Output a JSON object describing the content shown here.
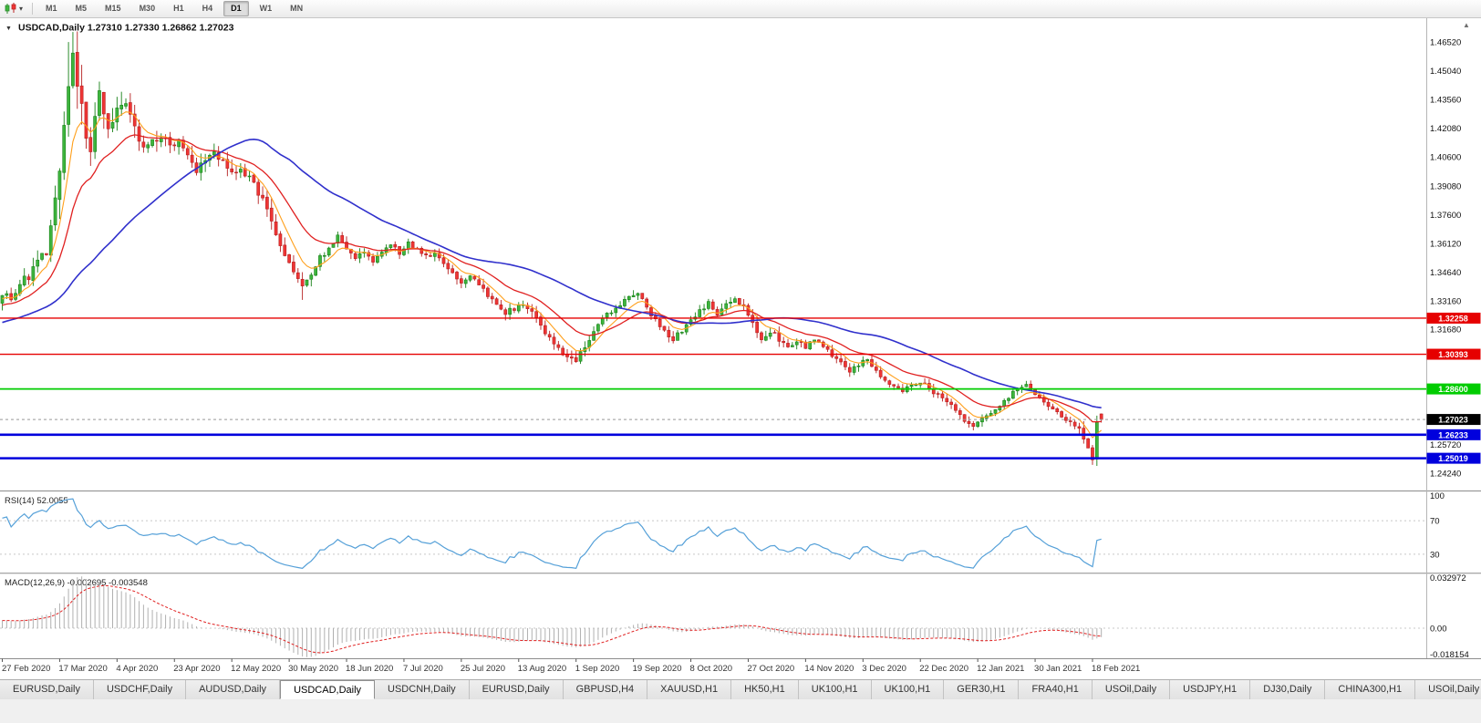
{
  "icons": {
    "caret_down_small": "▾",
    "title_caret": "▼",
    "scroll_up": "▲"
  },
  "toolbar": {
    "timeframes": [
      "M1",
      "M5",
      "M15",
      "M30",
      "H1",
      "H4",
      "D1",
      "W1",
      "MN"
    ],
    "active_timeframe": "D1"
  },
  "chart": {
    "title": "USDCAD,Daily 1.27310 1.27330 1.26862 1.27023",
    "symbol": "USDCAD",
    "period": "Daily",
    "open": "1.27310",
    "high": "1.27330",
    "low": "1.26862",
    "close": "1.27023"
  },
  "price_axis": {
    "labels": [
      "1.46520",
      "1.45040",
      "1.43560",
      "1.42080",
      "1.40600",
      "1.39080",
      "1.37600",
      "1.36120",
      "1.34640",
      "1.33160",
      "1.31680",
      "1.25720",
      "1.24240"
    ]
  },
  "indicators": {
    "rsi": {
      "display": "RSI(14) 52.0055",
      "period": 14,
      "value": 52.0055,
      "levels": [
        "100",
        "70",
        "30"
      ],
      "level_values": [
        100,
        70,
        30
      ],
      "color": "#55a0d8"
    },
    "macd": {
      "display": "MACD(12,26,9) -0.002695 -0.003548",
      "fast": 12,
      "slow": 26,
      "signal": 9,
      "macd_value": -0.002695,
      "signal_value": -0.003548,
      "axis_top": "0.032972",
      "axis_zero": "0.00",
      "axis_bottom": "-0.018154",
      "histogram_color": "#b0b0b0",
      "signal_color": "#e02020"
    }
  },
  "date_axis": {
    "labels": [
      {
        "bar": 0,
        "text": "27 Feb 2020"
      },
      {
        "bar": 13,
        "text": "17 Mar 2020"
      },
      {
        "bar": 26,
        "text": "4 Apr 2020"
      },
      {
        "bar": 39,
        "text": "23 Apr 2020"
      },
      {
        "bar": 52,
        "text": "12 May 2020"
      },
      {
        "bar": 65,
        "text": "30 May 2020"
      },
      {
        "bar": 78,
        "text": "18 Jun 2020"
      },
      {
        "bar": 91,
        "text": "7 Jul 2020"
      },
      {
        "bar": 104,
        "text": "25 Jul 2020"
      },
      {
        "bar": 117,
        "text": "13 Aug 2020"
      },
      {
        "bar": 130,
        "text": "1 Sep 2020"
      },
      {
        "bar": 143,
        "text": "19 Sep 2020"
      },
      {
        "bar": 156,
        "text": "8 Oct 2020"
      },
      {
        "bar": 169,
        "text": "27 Oct 2020"
      },
      {
        "bar": 182,
        "text": "14 Nov 2020"
      },
      {
        "bar": 195,
        "text": "3 Dec 2020"
      },
      {
        "bar": 208,
        "text": "22 Dec 2020"
      },
      {
        "bar": 221,
        "text": "12 Jan 2021"
      },
      {
        "bar": 234,
        "text": "30 Jan 2021"
      },
      {
        "bar": 247,
        "text": "18 Feb 2021"
      }
    ]
  },
  "tabs": {
    "items": [
      "EURUSD,Daily",
      "USDCHF,Daily",
      "AUDUSD,Daily",
      "USDCAD,Daily",
      "USDCNH,Daily",
      "EURUSD,Daily",
      "GBPUSD,H4",
      "XAUUSD,H1",
      "HK50,H1",
      "UK100,H1",
      "UK100,H1",
      "GER30,H1",
      "FRA40,H1",
      "USOil,Daily",
      "USDJPY,H1",
      "DJ30,Daily",
      "CHINA300,H1",
      "USOil,Daily"
    ],
    "active_index": 3
  },
  "chart_data": {
    "type": "candlestick",
    "symbol": "USDCAD",
    "timeframe": "Daily",
    "bars": 250,
    "date_range": [
      "27 Feb 2020",
      "18 Feb 2021"
    ],
    "y_axis": {
      "min": 1.234,
      "max": 1.4775
    },
    "ohlc_last_bar": {
      "open": 1.2731,
      "high": 1.2733,
      "low": 1.26862,
      "close": 1.27023
    },
    "price_path_anchors": [
      [
        0,
        1.336
      ],
      [
        2,
        1.333
      ],
      [
        4,
        1.3405
      ],
      [
        6,
        1.344
      ],
      [
        8,
        1.352
      ],
      [
        10,
        1.356
      ],
      [
        12,
        1.381
      ],
      [
        13,
        1.4
      ],
      [
        14,
        1.424
      ],
      [
        15,
        1.447
      ],
      [
        16,
        1.456
      ],
      [
        17,
        1.442
      ],
      [
        18,
        1.43
      ],
      [
        19,
        1.415
      ],
      [
        20,
        1.41
      ],
      [
        21,
        1.423
      ],
      [
        22,
        1.439
      ],
      [
        23,
        1.43
      ],
      [
        24,
        1.418
      ],
      [
        26,
        1.428
      ],
      [
        28,
        1.433
      ],
      [
        30,
        1.419
      ],
      [
        32,
        1.409
      ],
      [
        34,
        1.415
      ],
      [
        36,
        1.418
      ],
      [
        38,
        1.411
      ],
      [
        40,
        1.413
      ],
      [
        42,
        1.405
      ],
      [
        44,
        1.398
      ],
      [
        46,
        1.404
      ],
      [
        48,
        1.409
      ],
      [
        50,
        1.402
      ],
      [
        52,
        1.396
      ],
      [
        54,
        1.399
      ],
      [
        56,
        1.395
      ],
      [
        58,
        1.387
      ],
      [
        60,
        1.379
      ],
      [
        62,
        1.368
      ],
      [
        64,
        1.356
      ],
      [
        66,
        1.347
      ],
      [
        68,
        1.339
      ],
      [
        70,
        1.344
      ],
      [
        72,
        1.353
      ],
      [
        74,
        1.36
      ],
      [
        76,
        1.364
      ],
      [
        78,
        1.358
      ],
      [
        80,
        1.354
      ],
      [
        82,
        1.356
      ],
      [
        84,
        1.352
      ],
      [
        86,
        1.356
      ],
      [
        88,
        1.36
      ],
      [
        90,
        1.356
      ],
      [
        92,
        1.361
      ],
      [
        94,
        1.358
      ],
      [
        96,
        1.354
      ],
      [
        98,
        1.356
      ],
      [
        100,
        1.35
      ],
      [
        102,
        1.345
      ],
      [
        104,
        1.342
      ],
      [
        106,
        1.344
      ],
      [
        108,
        1.339
      ],
      [
        110,
        1.334
      ],
      [
        112,
        1.33
      ],
      [
        114,
        1.325
      ],
      [
        116,
        1.328
      ],
      [
        118,
        1.331
      ],
      [
        120,
        1.325
      ],
      [
        122,
        1.318
      ],
      [
        124,
        1.312
      ],
      [
        126,
        1.308
      ],
      [
        128,
        1.302
      ],
      [
        130,
        1.3
      ],
      [
        132,
        1.308
      ],
      [
        134,
        1.315
      ],
      [
        136,
        1.322
      ],
      [
        138,
        1.326
      ],
      [
        140,
        1.33
      ],
      [
        142,
        1.333
      ],
      [
        144,
        1.335
      ],
      [
        146,
        1.328
      ],
      [
        148,
        1.321
      ],
      [
        150,
        1.316
      ],
      [
        152,
        1.312
      ],
      [
        154,
        1.316
      ],
      [
        156,
        1.321
      ],
      [
        158,
        1.327
      ],
      [
        160,
        1.33
      ],
      [
        162,
        1.325
      ],
      [
        164,
        1.329
      ],
      [
        166,
        1.333
      ],
      [
        168,
        1.329
      ],
      [
        170,
        1.32
      ],
      [
        172,
        1.313
      ],
      [
        174,
        1.316
      ],
      [
        176,
        1.312
      ],
      [
        178,
        1.308
      ],
      [
        180,
        1.311
      ],
      [
        182,
        1.307
      ],
      [
        184,
        1.312
      ],
      [
        186,
        1.309
      ],
      [
        188,
        1.303
      ],
      [
        190,
        1.299
      ],
      [
        192,
        1.295
      ],
      [
        194,
        1.2985
      ],
      [
        196,
        1.301
      ],
      [
        198,
        1.295
      ],
      [
        200,
        1.29
      ],
      [
        202,
        1.287
      ],
      [
        204,
        1.284
      ],
      [
        206,
        1.288
      ],
      [
        208,
        1.29
      ],
      [
        210,
        1.286
      ],
      [
        212,
        1.283
      ],
      [
        214,
        1.279
      ],
      [
        216,
        1.275
      ],
      [
        218,
        1.27
      ],
      [
        220,
        1.266
      ],
      [
        222,
        1.27
      ],
      [
        224,
        1.2745
      ],
      [
        226,
        1.277
      ],
      [
        228,
        1.282
      ],
      [
        230,
        1.286
      ],
      [
        232,
        1.2875
      ],
      [
        234,
        1.284
      ],
      [
        236,
        1.279
      ],
      [
        238,
        1.276
      ],
      [
        240,
        1.272
      ],
      [
        242,
        1.269
      ],
      [
        244,
        1.265
      ],
      [
        245,
        1.26
      ],
      [
        246,
        1.254
      ],
      [
        247,
        1.2475
      ],
      [
        248,
        1.27
      ],
      [
        249,
        1.27023
      ]
    ],
    "volatility_anchors": [
      [
        0,
        0.007
      ],
      [
        10,
        0.01
      ],
      [
        13,
        0.02
      ],
      [
        17,
        0.022
      ],
      [
        21,
        0.016
      ],
      [
        26,
        0.013
      ],
      [
        32,
        0.011
      ],
      [
        40,
        0.009
      ],
      [
        50,
        0.009
      ],
      [
        58,
        0.009
      ],
      [
        64,
        0.01
      ],
      [
        70,
        0.008
      ],
      [
        80,
        0.006
      ],
      [
        95,
        0.0055
      ],
      [
        110,
        0.006
      ],
      [
        125,
        0.006
      ],
      [
        130,
        0.0065
      ],
      [
        140,
        0.005
      ],
      [
        150,
        0.0055
      ],
      [
        165,
        0.005
      ],
      [
        172,
        0.0065
      ],
      [
        180,
        0.0055
      ],
      [
        190,
        0.005
      ],
      [
        200,
        0.005
      ],
      [
        210,
        0.0045
      ],
      [
        220,
        0.0048
      ],
      [
        230,
        0.0042
      ],
      [
        240,
        0.0042
      ],
      [
        246,
        0.0075
      ],
      [
        247,
        0.009
      ],
      [
        249,
        0.0045
      ]
    ],
    "forced_points": [
      {
        "bar": 15,
        "high": 1.4652
      },
      {
        "bar": 68,
        "low": 1.332
      },
      {
        "bar": 130,
        "low": 1.2995
      },
      {
        "bar": 247,
        "low": 1.2468
      }
    ],
    "candle_colors": {
      "up_fill": "#3db53d",
      "up_stroke": "#168016",
      "down_fill": "#ef3535",
      "down_stroke": "#b51f1f"
    },
    "moving_averages": [
      {
        "name": "fast-ma",
        "method": "ema",
        "period": 7,
        "color": "#ff9f1a",
        "width": 1.1
      },
      {
        "name": "mid-ma",
        "method": "ema",
        "period": 18,
        "color": "#e02020",
        "width": 1.3
      },
      {
        "name": "slow-ma",
        "method": "sma",
        "period": 45,
        "color": "#3030cc",
        "width": 1.6
      }
    ],
    "horizontal_lines": [
      {
        "label": "1.32258",
        "price": 1.32258,
        "color": "#e60000",
        "width": 1.4
      },
      {
        "label": "1.30393",
        "price": 1.30393,
        "color": "#e60000",
        "width": 1.4
      },
      {
        "label": "1.28600",
        "price": 1.286,
        "color": "#00cc00",
        "width": 1.8
      },
      {
        "label": "1.26233",
        "price": 1.26233,
        "color": "#0000dd",
        "width": 2.6
      },
      {
        "label": "1.25019",
        "price": 1.25019,
        "color": "#0000dd",
        "width": 2.6
      }
    ],
    "current_price": {
      "label": "1.27023",
      "price": 1.27023,
      "box_color": "#000000"
    }
  }
}
